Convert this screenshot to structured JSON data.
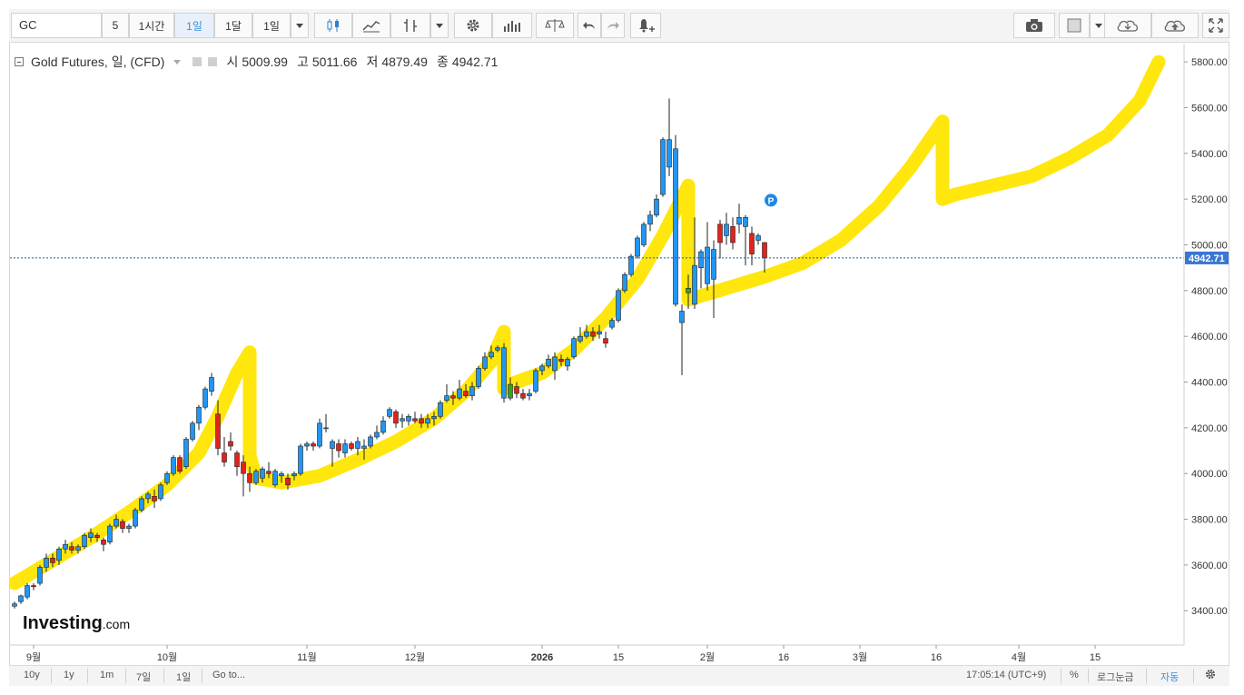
{
  "toolbar": {
    "symbol": "GC",
    "intervals": [
      "5",
      "1시간",
      "1일",
      "1달",
      "1일"
    ],
    "active_interval": "1일",
    "icons": [
      "candlestick-icon",
      "line-chart-icon",
      "indicator-icon",
      "gear-icon",
      "volume-bars-icon",
      "compare-scale-icon",
      "undo-icon",
      "redo-icon",
      "alert-bell-icon",
      "camera-icon",
      "color-swatch-icon",
      "cloud-save-icon",
      "cloud-upload-icon",
      "fullscreen-icon"
    ]
  },
  "legend": {
    "title": "Gold Futures, 일, (CFD)",
    "open_label": "시",
    "open": "5009.99",
    "high_label": "고",
    "high": "5011.66",
    "low_label": "저",
    "low": "4879.49",
    "close_label": "종",
    "close": "4942.71"
  },
  "colors": {
    "up": "#2196f3",
    "down": "#e2231a",
    "green": "#3aa020",
    "highlight": "#ffe500",
    "price_line": "#1e5aa8",
    "price_tag_bg": "#3b76d2"
  },
  "chart_data": {
    "type": "candlestick",
    "price_tag": "4942.71",
    "y_ticks": [
      "5800.00",
      "5600.00",
      "5400.00",
      "5200.00",
      "5000.00",
      "4800.00",
      "4600.00",
      "4400.00",
      "4200.00",
      "4000.00",
      "3800.00",
      "3600.00",
      "3400.00"
    ],
    "x_ticks": [
      "9월",
      "10월",
      "11월",
      "12월",
      "2026",
      "15",
      "2월",
      "16",
      "3월",
      "16",
      "4월",
      "15"
    ],
    "ylim": [
      3250,
      5880
    ],
    "marker": "P",
    "watermark_brand": "Investing",
    "watermark_suffix": ".com",
    "candles": [
      [
        3420,
        3440,
        3410,
        3430
      ],
      [
        3440,
        3470,
        3430,
        3465
      ],
      [
        3460,
        3520,
        3450,
        3510
      ],
      [
        3510,
        3520,
        3490,
        3505
      ],
      [
        3520,
        3600,
        3510,
        3590
      ],
      [
        3590,
        3650,
        3570,
        3630
      ],
      [
        3630,
        3650,
        3590,
        3610
      ],
      [
        3620,
        3680,
        3600,
        3670
      ],
      [
        3670,
        3710,
        3650,
        3690
      ],
      [
        3680,
        3700,
        3650,
        3665
      ],
      [
        3665,
        3690,
        3650,
        3680
      ],
      [
        3680,
        3740,
        3670,
        3730
      ],
      [
        3720,
        3760,
        3700,
        3740
      ],
      [
        3730,
        3740,
        3700,
        3720
      ],
      [
        3710,
        3720,
        3660,
        3690
      ],
      [
        3700,
        3780,
        3690,
        3770
      ],
      [
        3770,
        3820,
        3760,
        3800
      ],
      [
        3790,
        3800,
        3740,
        3760
      ],
      [
        3760,
        3780,
        3740,
        3770
      ],
      [
        3770,
        3850,
        3760,
        3840
      ],
      [
        3840,
        3900,
        3830,
        3890
      ],
      [
        3890,
        3920,
        3870,
        3910
      ],
      [
        3900,
        3930,
        3850,
        3880
      ],
      [
        3890,
        3960,
        3880,
        3950
      ],
      [
        3960,
        4010,
        3950,
        4000
      ],
      [
        4000,
        4080,
        3990,
        4070
      ],
      [
        4070,
        4080,
        4000,
        4010
      ],
      [
        4030,
        4160,
        4020,
        4150
      ],
      [
        4150,
        4230,
        4140,
        4220
      ],
      [
        4220,
        4300,
        4190,
        4290
      ],
      [
        4290,
        4380,
        4280,
        4370
      ],
      [
        4360,
        4440,
        4340,
        4420
      ],
      [
        4260,
        4320,
        4080,
        4110
      ],
      [
        4090,
        4160,
        4030,
        4050
      ],
      [
        4140,
        4180,
        4100,
        4120
      ],
      [
        4090,
        4100,
        3990,
        4030
      ],
      [
        4050,
        4080,
        3900,
        4000
      ],
      [
        4000,
        4030,
        3920,
        3960
      ],
      [
        3960,
        4020,
        3950,
        4010
      ],
      [
        3980,
        4030,
        3960,
        4020
      ],
      [
        4010,
        4050,
        3980,
        4000
      ],
      [
        3950,
        4020,
        3940,
        4010
      ],
      [
        3990,
        4010,
        3960,
        4000
      ],
      [
        3980,
        4000,
        3930,
        3950
      ],
      [
        3990,
        4010,
        3970,
        4000
      ],
      [
        4000,
        4130,
        3990,
        4120
      ],
      [
        4120,
        4140,
        4100,
        4130
      ],
      [
        4130,
        4140,
        4100,
        4120
      ],
      [
        4120,
        4240,
        4110,
        4220
      ],
      [
        4200,
        4260,
        4180,
        4200
      ],
      [
        4110,
        4150,
        4030,
        4140
      ],
      [
        4130,
        4150,
        4070,
        4100
      ],
      [
        4090,
        4150,
        4070,
        4130
      ],
      [
        4130,
        4140,
        4100,
        4110
      ],
      [
        4110,
        4160,
        4080,
        4140
      ],
      [
        4110,
        4150,
        4060,
        4120
      ],
      [
        4120,
        4170,
        4110,
        4160
      ],
      [
        4160,
        4210,
        4150,
        4180
      ],
      [
        4180,
        4250,
        4170,
        4230
      ],
      [
        4250,
        4290,
        4240,
        4280
      ],
      [
        4270,
        4280,
        4200,
        4220
      ],
      [
        4230,
        4260,
        4200,
        4240
      ],
      [
        4230,
        4260,
        4210,
        4250
      ],
      [
        4240,
        4270,
        4220,
        4230
      ],
      [
        4240,
        4260,
        4200,
        4220
      ],
      [
        4220,
        4260,
        4200,
        4240
      ],
      [
        4240,
        4270,
        4210,
        4250
      ],
      [
        4250,
        4320,
        4240,
        4310
      ],
      [
        4320,
        4390,
        4310,
        4340
      ],
      [
        4340,
        4360,
        4300,
        4330
      ],
      [
        4330,
        4410,
        4320,
        4370
      ],
      [
        4360,
        4390,
        4330,
        4340
      ],
      [
        4340,
        4400,
        4320,
        4380
      ],
      [
        4380,
        4470,
        4370,
        4460
      ],
      [
        4460,
        4530,
        4450,
        4510
      ],
      [
        4510,
        4560,
        4500,
        4530
      ],
      [
        4540,
        4560,
        4530,
        4550
      ],
      [
        4330,
        4570,
        4310,
        4550
      ],
      [
        4330,
        4420,
        4320,
        4390
      ],
      [
        4380,
        4400,
        4330,
        4350
      ],
      [
        4350,
        4370,
        4320,
        4330
      ],
      [
        4340,
        4370,
        4320,
        4350
      ],
      [
        4360,
        4460,
        4350,
        4450
      ],
      [
        4450,
        4480,
        4430,
        4470
      ],
      [
        4470,
        4520,
        4460,
        4500
      ],
      [
        4450,
        4530,
        4410,
        4510
      ],
      [
        4500,
        4520,
        4470,
        4490
      ],
      [
        4470,
        4510,
        4450,
        4500
      ],
      [
        4510,
        4600,
        4500,
        4590
      ],
      [
        4580,
        4640,
        4570,
        4600
      ],
      [
        4600,
        4650,
        4590,
        4620
      ],
      [
        4620,
        4640,
        4580,
        4600
      ],
      [
        4610,
        4650,
        4590,
        4620
      ],
      [
        4590,
        4620,
        4550,
        4570
      ],
      [
        4640,
        4680,
        4630,
        4670
      ],
      [
        4670,
        4810,
        4660,
        4800
      ],
      [
        4800,
        4880,
        4790,
        4870
      ],
      [
        4870,
        4960,
        4860,
        4950
      ],
      [
        4950,
        5040,
        4940,
        5030
      ],
      [
        5000,
        5100,
        4990,
        5090
      ],
      [
        5090,
        5150,
        5060,
        5130
      ],
      [
        5130,
        5220,
        5120,
        5200
      ],
      [
        5220,
        5470,
        5210,
        5460
      ],
      [
        5340,
        5640,
        5300,
        5460
      ],
      [
        4740,
        5480,
        4730,
        5420
      ],
      [
        4660,
        4740,
        4430,
        4710
      ],
      [
        4790,
        4870,
        4720,
        4810
      ],
      [
        4740,
        5120,
        4720,
        4910
      ],
      [
        4900,
        4980,
        4810,
        4970
      ],
      [
        4830,
        5100,
        4800,
        4990
      ],
      [
        4850,
        5020,
        4680,
        4980
      ],
      [
        5090,
        5110,
        4940,
        5010
      ],
      [
        5040,
        5140,
        5000,
        5090
      ],
      [
        5080,
        5120,
        4980,
        5010
      ],
      [
        5090,
        5180,
        5050,
        5120
      ],
      [
        5080,
        5130,
        4910,
        5120
      ],
      [
        5050,
        5080,
        4910,
        4960
      ],
      [
        5020,
        5050,
        5000,
        5040
      ],
      [
        5010,
        5012,
        4879,
        4943
      ]
    ],
    "highlight_path": [
      [
        0,
        3520
      ],
      [
        6,
        3620
      ],
      [
        12,
        3720
      ],
      [
        18,
        3830
      ],
      [
        24,
        3950
      ],
      [
        29,
        4090
      ],
      [
        32,
        4250
      ],
      [
        35,
        4440
      ],
      [
        37,
        4530
      ],
      [
        37,
        4080
      ],
      [
        38,
        3980
      ],
      [
        42,
        3960
      ],
      [
        48,
        3990
      ],
      [
        54,
        4060
      ],
      [
        60,
        4140
      ],
      [
        66,
        4240
      ],
      [
        71,
        4360
      ],
      [
        75,
        4490
      ],
      [
        77,
        4620
      ],
      [
        77,
        4370
      ],
      [
        78,
        4390
      ],
      [
        83,
        4440
      ],
      [
        88,
        4540
      ],
      [
        93,
        4680
      ],
      [
        98,
        4850
      ],
      [
        102,
        5040
      ],
      [
        106,
        5260
      ],
      [
        106,
        4760
      ],
      [
        112,
        4810
      ],
      [
        118,
        4860
      ],
      [
        124,
        4920
      ],
      [
        130,
        5020
      ],
      [
        136,
        5170
      ],
      [
        141,
        5340
      ],
      [
        146,
        5540
      ],
      [
        146,
        5200
      ],
      [
        148,
        5220
      ],
      [
        154,
        5260
      ],
      [
        160,
        5300
      ],
      [
        166,
        5380
      ],
      [
        172,
        5480
      ],
      [
        177,
        5630
      ],
      [
        180,
        5800
      ]
    ],
    "future_bars": 60
  },
  "bottombar": {
    "ranges": [
      "10y",
      "1y",
      "1m",
      "7일",
      "1일"
    ],
    "goto": "Go to...",
    "time": "17:05:14 (UTC+9)",
    "percent": "%",
    "log": "로그눈금",
    "auto": "자동"
  }
}
